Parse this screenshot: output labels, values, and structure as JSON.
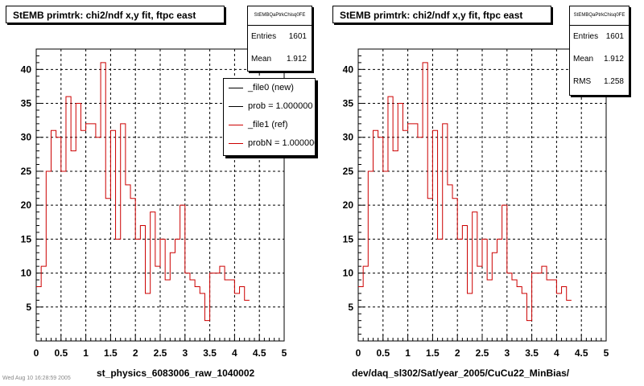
{
  "colors": {
    "new": "#000000",
    "ref": "#cc0000",
    "grid": "#000000"
  },
  "chart_data": [
    {
      "type": "histogram",
      "title": "StEMB primtrk: chi2/ndf x,y fit, ftpc east",
      "xlabel": "st_physics_6083006_raw_1040002",
      "xlim": [
        0,
        5
      ],
      "ylim": [
        0,
        43
      ],
      "xticks": [
        "0",
        "0.5",
        "1",
        "1.5",
        "2",
        "2.5",
        "3",
        "3.5",
        "4",
        "4.5",
        "5"
      ],
      "yticks": [
        "5",
        "10",
        "15",
        "20",
        "25",
        "30",
        "35",
        "40"
      ],
      "grid": true,
      "bin_width": 0.1,
      "values": [
        8,
        11,
        25,
        31,
        30,
        25,
        36,
        28,
        35,
        31,
        32,
        32,
        30,
        41,
        21,
        31,
        15,
        32,
        23,
        21,
        15,
        17,
        7,
        19,
        11,
        15,
        9,
        13,
        15,
        20,
        10,
        9,
        8,
        7,
        3,
        10,
        10,
        11,
        9,
        9,
        7,
        8,
        6
      ],
      "stats": {
        "name": "StEMBQaPtrkChisq0FE",
        "rows": [
          {
            "label": "Entries",
            "value": "1601"
          },
          {
            "label": "Mean",
            "value": "1.912"
          }
        ]
      },
      "legend": [
        {
          "label": "_file0 (new)",
          "color": "#000000"
        },
        {
          "label": "prob = 1.000000",
          "color": "#000000"
        },
        {
          "label": "_file1 (ref)",
          "color": "#cc0000"
        },
        {
          "label": "probN = 1.000000",
          "color": "#cc0000"
        }
      ]
    },
    {
      "type": "histogram",
      "title": "StEMB primtrk: chi2/ndf x,y fit, ftpc east",
      "xlabel": "dev/daq_sl302/Sat/year_2005/CuCu22_MinBias/",
      "xlim": [
        0,
        5
      ],
      "ylim": [
        0,
        43
      ],
      "xticks": [
        "0",
        "0.5",
        "1",
        "1.5",
        "2",
        "2.5",
        "3",
        "3.5",
        "4",
        "4.5",
        "5"
      ],
      "yticks": [
        "5",
        "10",
        "15",
        "20",
        "25",
        "30",
        "35",
        "40"
      ],
      "grid": true,
      "bin_width": 0.1,
      "values": [
        8,
        11,
        25,
        31,
        30,
        25,
        36,
        28,
        35,
        31,
        32,
        32,
        30,
        41,
        21,
        31,
        15,
        32,
        23,
        21,
        15,
        17,
        7,
        19,
        11,
        15,
        9,
        13,
        15,
        20,
        10,
        9,
        8,
        7,
        3,
        10,
        10,
        11,
        9,
        9,
        7,
        8,
        6
      ],
      "stats": {
        "name": "StEMBQaPtrkChisq0FE",
        "rows": [
          {
            "label": "Entries",
            "value": "1601"
          },
          {
            "label": "Mean",
            "value": "1.912"
          },
          {
            "label": "RMS",
            "value": "1.258"
          }
        ]
      }
    }
  ],
  "footer_stamp": "Wed Aug 10 16:28:59 2005"
}
